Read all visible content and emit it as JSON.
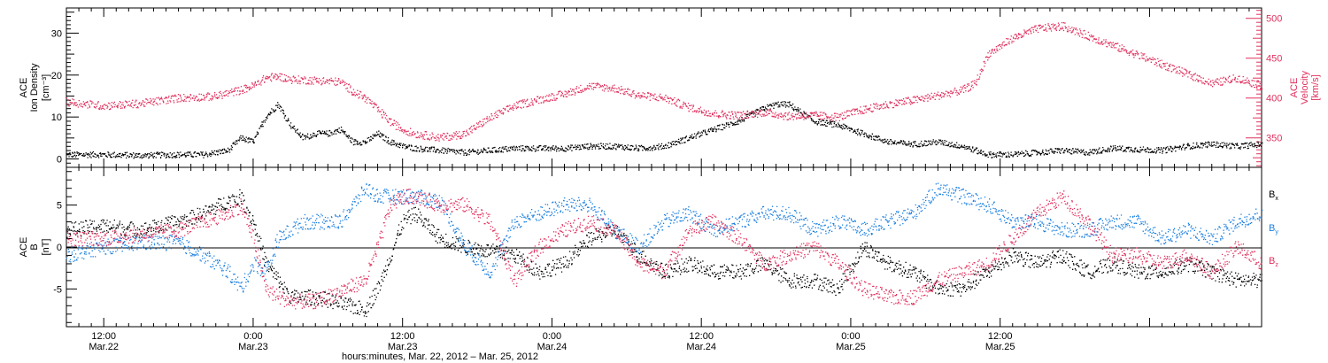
{
  "chart_data": [
    {
      "type": "scatter",
      "panel": "top",
      "ylabel_left": [
        "ACE",
        "Ion Density",
        "[cm⁻³]"
      ],
      "ylabel_right": [
        "ACE",
        "Velocity",
        "[km/s]"
      ],
      "ylim_left": [
        -2,
        36
      ],
      "ylim_right": [
        313,
        513
      ],
      "yticks_left": [
        "0",
        "10",
        "20",
        "30"
      ],
      "yticks_right": [
        "350",
        "400",
        "450",
        "500"
      ],
      "series": [
        {
          "color": "#000000",
          "axis": "left",
          "x_hours": [
            0,
            3,
            6,
            9,
            11,
            13,
            14,
            15,
            16,
            17,
            18,
            19,
            20,
            21,
            22,
            23,
            24,
            25,
            26,
            27,
            28,
            30,
            32,
            34,
            36,
            38,
            40,
            42,
            44,
            46,
            48,
            50,
            52,
            54,
            56,
            57,
            58,
            60,
            62,
            64,
            66,
            68,
            70,
            72,
            74,
            76,
            78,
            80,
            82,
            84,
            88,
            90,
            92,
            94,
            96
          ],
          "values": [
            1,
            1,
            0.8,
            1,
            1,
            2,
            5,
            4,
            10,
            13,
            8,
            5,
            6,
            6,
            7,
            4,
            4,
            6,
            4,
            3,
            2.5,
            2,
            1.5,
            2,
            2.5,
            2.5,
            2.5,
            3,
            3,
            2.5,
            3,
            5,
            7,
            9,
            12,
            13,
            13,
            9,
            8,
            6,
            4,
            3.5,
            4,
            3,
            1,
            1,
            1.5,
            2,
            1.5,
            2.5,
            2,
            3,
            3.5,
            3,
            3.5
          ]
        },
        {
          "color": "#e0305e",
          "axis": "right",
          "x_hours": [
            0,
            3,
            6,
            9,
            12,
            14,
            15,
            16,
            17,
            18,
            20,
            22,
            23,
            24,
            25,
            26,
            27,
            28,
            30,
            32,
            34,
            36,
            38,
            40,
            42,
            44,
            46,
            48,
            50,
            52,
            54,
            56,
            58,
            60,
            62,
            64,
            66,
            68,
            70,
            72,
            73,
            74,
            76,
            78,
            80,
            82,
            84,
            88,
            90,
            92,
            94,
            96
          ],
          "values": [
            395,
            390,
            393,
            400,
            402,
            410,
            415,
            425,
            427,
            423,
            422,
            420,
            408,
            400,
            385,
            370,
            360,
            355,
            350,
            355,
            375,
            390,
            398,
            405,
            415,
            412,
            403,
            400,
            388,
            380,
            378,
            382,
            377,
            378,
            376,
            385,
            392,
            397,
            403,
            410,
            418,
            455,
            475,
            487,
            490,
            478,
            466,
            442,
            430,
            418,
            425,
            415
          ]
        }
      ]
    },
    {
      "type": "scatter",
      "panel": "bottom",
      "ylabel": [
        "ACE",
        "B",
        "[nT]"
      ],
      "ylim": [
        -9.5,
        9.5
      ],
      "yticks": [
        "-5",
        "0",
        "5"
      ],
      "legend": [
        "Bx",
        "By",
        "Bz"
      ],
      "legend_placement": "right",
      "series": [
        {
          "color": "#000000",
          "x_hours": [
            0,
            3,
            6,
            9,
            11,
            13,
            14,
            15,
            16,
            17,
            18,
            20,
            24,
            25,
            26,
            27,
            28,
            30,
            32,
            34,
            36,
            38,
            40,
            42,
            44,
            46,
            48,
            50,
            52,
            54,
            56,
            58,
            60,
            62,
            64,
            66,
            68,
            70,
            72,
            74,
            76,
            78,
            80,
            82,
            84,
            86,
            88,
            90,
            92,
            94,
            96
          ],
          "values": [
            2,
            2.5,
            2,
            3,
            4,
            5.5,
            6,
            3,
            -2,
            -4,
            -6,
            -6,
            -7.5,
            -5,
            -1,
            3,
            4,
            1,
            0,
            -0.5,
            -1,
            -3,
            -2,
            1,
            2,
            -1,
            -3,
            -2,
            -3,
            -3,
            -2,
            -4,
            -4,
            -5,
            0,
            -2,
            -3,
            -5,
            -5,
            -3,
            -1,
            -2,
            -1,
            -3,
            -2,
            -3,
            -3,
            -2,
            -3,
            -4,
            -4
          ]
        },
        {
          "color": "#1a7fe0",
          "x_hours": [
            0,
            3,
            6,
            9,
            11,
            13,
            14,
            15,
            16,
            17,
            18,
            19,
            22,
            23,
            24,
            25,
            26,
            28,
            30,
            32,
            34,
            36,
            38,
            40,
            42,
            44,
            46,
            48,
            50,
            52,
            54,
            56,
            58,
            60,
            62,
            64,
            66,
            68,
            70,
            72,
            74,
            76,
            78,
            80,
            82,
            84,
            86,
            88,
            90,
            92,
            94,
            96
          ],
          "values": [
            -1,
            0,
            0.5,
            0.5,
            -1,
            -3,
            -5,
            -2,
            -3,
            1,
            2,
            3,
            3,
            5,
            7,
            6,
            6,
            6,
            5.5,
            0,
            -3,
            3,
            4,
            5,
            5,
            2,
            0,
            3,
            4,
            2,
            3,
            4,
            4,
            2,
            3,
            2,
            3,
            4,
            7,
            6,
            5,
            3,
            3,
            2,
            2,
            3,
            3,
            1,
            2,
            1,
            3,
            4
          ]
        },
        {
          "color": "#e0305e",
          "x_hours": [
            0,
            3,
            6,
            9,
            11,
            13,
            14,
            15,
            16,
            17,
            18,
            20,
            24,
            25,
            26,
            27,
            28,
            30,
            32,
            34,
            36,
            38,
            40,
            42,
            44,
            46,
            48,
            50,
            52,
            54,
            56,
            58,
            60,
            62,
            64,
            66,
            68,
            70,
            72,
            74,
            76,
            78,
            80,
            82,
            84,
            86,
            88,
            90,
            92,
            94,
            96
          ],
          "values": [
            1,
            1,
            1.5,
            2,
            3,
            4,
            5,
            1,
            -5,
            -6,
            -6.5,
            -6.5,
            -4,
            0,
            5,
            6,
            6,
            5,
            5,
            3,
            -4,
            0,
            2,
            3,
            2,
            -2,
            -3,
            2,
            3,
            1,
            -2,
            -1,
            0,
            -2,
            -5,
            -6,
            -6,
            -4,
            -3,
            -2,
            1,
            4,
            6,
            3,
            -1,
            -1,
            -2,
            -1,
            -3,
            0,
            -2
          ]
        }
      ]
    }
  ],
  "x_axis": {
    "range_hours": [
      0,
      96
    ],
    "tick_time_labels": [
      "12:00",
      "0:00",
      "12:00",
      "0:00",
      "12:00",
      "0:00",
      "12:00"
    ],
    "tick_date_labels": [
      "Mar.22",
      "Mar.23",
      "Mar.23",
      "Mar.24",
      "Mar.24",
      "Mar.25",
      "Mar.25"
    ],
    "xlabel": "hours:minutes, Mar. 22, 2012 – Mar. 25, 2012"
  }
}
